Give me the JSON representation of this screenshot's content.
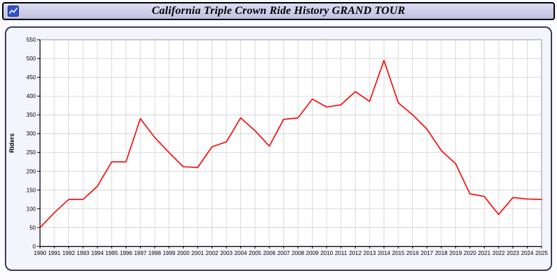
{
  "title_bar": {
    "title": "California Triple Crown Ride History GRAND TOUR",
    "icon": "line-chart-icon"
  },
  "colors": {
    "line": "#ff0000",
    "titlebar_bg": "#ccccea",
    "panel_border": "#3a3a60",
    "grid": "#cccccc",
    "plot_bg": "#ffffff",
    "axis": "#000000"
  },
  "chart_data": {
    "type": "line",
    "title": "California Triple Crown Ride History GRAND TOUR",
    "xlabel": "",
    "ylabel": "Riders",
    "ylim": [
      0,
      550
    ],
    "ytick_interval": 50,
    "grid": true,
    "legend_position": "none",
    "x": [
      1990,
      1991,
      1992,
      1993,
      1994,
      1995,
      1996,
      1997,
      1998,
      1999,
      2000,
      2001,
      2002,
      2003,
      2004,
      2005,
      2006,
      2007,
      2008,
      2009,
      2010,
      2011,
      2012,
      2013,
      2014,
      2015,
      2016,
      2017,
      2018,
      2019,
      2020,
      2021,
      2022,
      2023,
      2024,
      2025
    ],
    "series": [
      {
        "name": "Riders",
        "color": "#ff0000",
        "values": [
          50,
          90,
          125,
          125,
          160,
          225,
          225,
          340,
          290,
          250,
          212,
          210,
          265,
          278,
          342,
          308,
          267,
          338,
          342,
          392,
          371,
          377,
          412,
          386,
          495,
          382,
          350,
          312,
          255,
          220,
          140,
          133,
          85,
          130,
          126,
          125
        ]
      }
    ]
  }
}
